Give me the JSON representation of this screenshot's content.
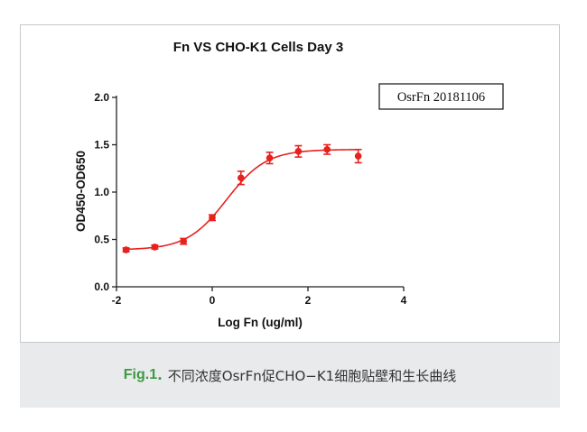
{
  "chart_data": {
    "type": "scatter",
    "title": "Fn VS CHO-K1 Cells Day 3",
    "xlabel": "Log Fn (ug/ml)",
    "ylabel": "OD450-OD650",
    "xlim": [
      -2,
      4
    ],
    "ylim": [
      0.0,
      2.0
    ],
    "x_ticks": [
      "-2",
      "0",
      "2",
      "4"
    ],
    "y_ticks": [
      "0.0",
      "0.5",
      "1.0",
      "1.5",
      "2.0"
    ],
    "legend": "OsrFn 20181106",
    "legend_position": "top-right",
    "color": "#e8211d",
    "grid": false,
    "fit": "sigmoidal",
    "series": [
      {
        "name": "OsrFn 20181106",
        "x": [
          -1.8,
          -1.2,
          -0.6,
          0.0,
          0.6,
          1.2,
          1.8,
          2.4,
          3.05
        ],
        "y": [
          0.39,
          0.42,
          0.48,
          0.73,
          1.15,
          1.36,
          1.43,
          1.45,
          1.38
        ],
        "error": [
          0.02,
          0.02,
          0.03,
          0.03,
          0.07,
          0.06,
          0.06,
          0.05,
          0.07
        ]
      }
    ]
  },
  "caption": {
    "label": "Fig.1",
    "separator": ".",
    "text": "不同浓度OsrFn促CHO−K1细胞贴壁和生长曲线"
  }
}
